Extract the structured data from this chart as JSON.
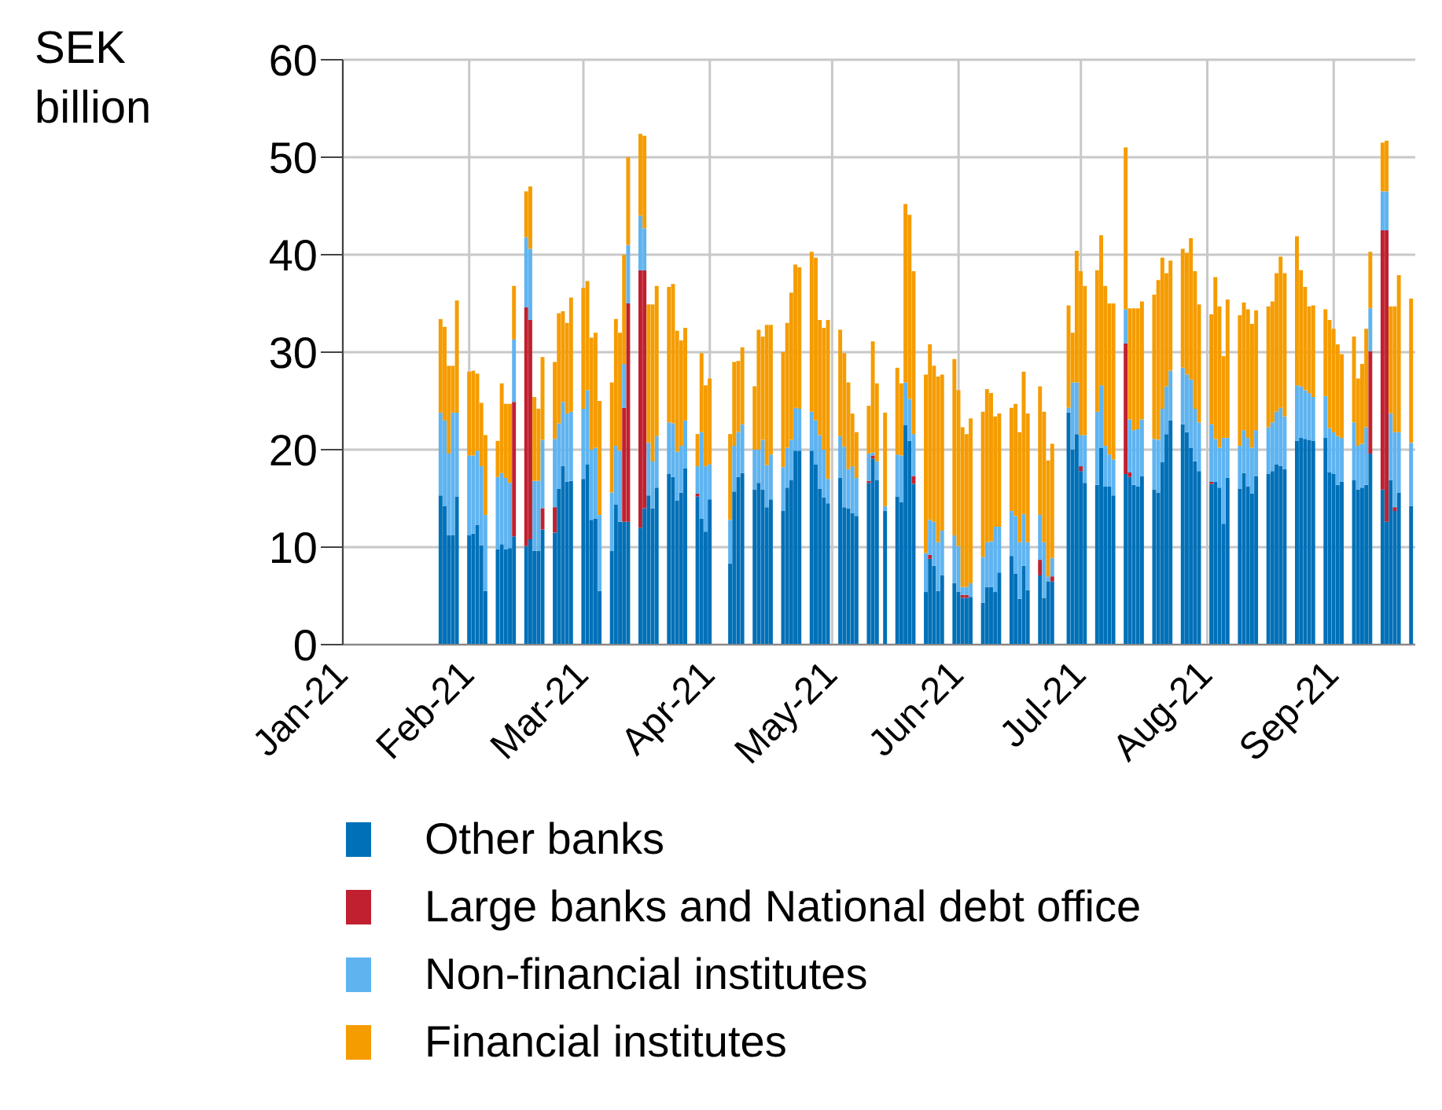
{
  "chart_data": {
    "type": "bar",
    "stacked": true,
    "ylabel": "SEK billion",
    "grid": true,
    "legend": "bottom",
    "xlim": [
      "2021-01-01",
      "2021-09-21"
    ],
    "xticks": [
      {
        "value": "2021-01-01",
        "label": "Jan-21"
      },
      {
        "value": "2021-02-01",
        "label": "Feb-21"
      },
      {
        "value": "2021-03-01",
        "label": "Mar-21"
      },
      {
        "value": "2021-04-01",
        "label": "Apr-21"
      },
      {
        "value": "2021-05-01",
        "label": "May-21"
      },
      {
        "value": "2021-06-01",
        "label": "Jun-21"
      },
      {
        "value": "2021-07-01",
        "label": "Jul-21"
      },
      {
        "value": "2021-08-01",
        "label": "Aug-21"
      },
      {
        "value": "2021-09-01",
        "label": "Sep-21"
      }
    ],
    "ylim": [
      0,
      60
    ],
    "yticks": [
      0,
      10,
      20,
      30,
      40,
      50,
      60
    ],
    "x": [
      "2021-01-25",
      "2021-01-26",
      "2021-01-27",
      "2021-01-28",
      "2021-01-29",
      "2021-02-01",
      "2021-02-02",
      "2021-02-03",
      "2021-02-04",
      "2021-02-05",
      "2021-02-08",
      "2021-02-09",
      "2021-02-10",
      "2021-02-11",
      "2021-02-12",
      "2021-02-15",
      "2021-02-16",
      "2021-02-17",
      "2021-02-18",
      "2021-02-19",
      "2021-02-22",
      "2021-02-23",
      "2021-02-24",
      "2021-02-25",
      "2021-02-26",
      "2021-03-01",
      "2021-03-02",
      "2021-03-03",
      "2021-03-04",
      "2021-03-05",
      "2021-03-08",
      "2021-03-09",
      "2021-03-10",
      "2021-03-11",
      "2021-03-12",
      "2021-03-15",
      "2021-03-16",
      "2021-03-17",
      "2021-03-18",
      "2021-03-19",
      "2021-03-22",
      "2021-03-23",
      "2021-03-24",
      "2021-03-25",
      "2021-03-26",
      "2021-03-29",
      "2021-03-30",
      "2021-03-31",
      "2021-04-01",
      "2021-04-06",
      "2021-04-07",
      "2021-04-08",
      "2021-04-09",
      "2021-04-12",
      "2021-04-13",
      "2021-04-14",
      "2021-04-15",
      "2021-04-16",
      "2021-04-19",
      "2021-04-20",
      "2021-04-21",
      "2021-04-22",
      "2021-04-23",
      "2021-04-26",
      "2021-04-27",
      "2021-04-28",
      "2021-04-29",
      "2021-04-30",
      "2021-05-03",
      "2021-05-04",
      "2021-05-05",
      "2021-05-06",
      "2021-05-07",
      "2021-05-10",
      "2021-05-11",
      "2021-05-12",
      "2021-05-14",
      "2021-05-17",
      "2021-05-18",
      "2021-05-19",
      "2021-05-20",
      "2021-05-21",
      "2021-05-24",
      "2021-05-25",
      "2021-05-26",
      "2021-05-27",
      "2021-05-28",
      "2021-05-31",
      "2021-06-01",
      "2021-06-02",
      "2021-06-03",
      "2021-06-04",
      "2021-06-07",
      "2021-06-08",
      "2021-06-09",
      "2021-06-10",
      "2021-06-11",
      "2021-06-14",
      "2021-06-15",
      "2021-06-16",
      "2021-06-17",
      "2021-06-18",
      "2021-06-21",
      "2021-06-22",
      "2021-06-23",
      "2021-06-24",
      "2021-06-28",
      "2021-06-29",
      "2021-06-30",
      "2021-07-01",
      "2021-07-02",
      "2021-07-05",
      "2021-07-06",
      "2021-07-07",
      "2021-07-08",
      "2021-07-09",
      "2021-07-12",
      "2021-07-13",
      "2021-07-14",
      "2021-07-15",
      "2021-07-16",
      "2021-07-19",
      "2021-07-20",
      "2021-07-21",
      "2021-07-22",
      "2021-07-23",
      "2021-07-26",
      "2021-07-27",
      "2021-07-28",
      "2021-07-29",
      "2021-07-30",
      "2021-08-02",
      "2021-08-03",
      "2021-08-04",
      "2021-08-05",
      "2021-08-06",
      "2021-08-09",
      "2021-08-10",
      "2021-08-11",
      "2021-08-12",
      "2021-08-13",
      "2021-08-16",
      "2021-08-17",
      "2021-08-18",
      "2021-08-19",
      "2021-08-20",
      "2021-08-23",
      "2021-08-24",
      "2021-08-25",
      "2021-08-26",
      "2021-08-27",
      "2021-08-30",
      "2021-08-31",
      "2021-09-01",
      "2021-09-02",
      "2021-09-03",
      "2021-09-06",
      "2021-09-07",
      "2021-09-08",
      "2021-09-09",
      "2021-09-10",
      "2021-09-13",
      "2021-09-14",
      "2021-09-15",
      "2021-09-16",
      "2021-09-17",
      "2021-09-20"
    ],
    "series": [
      {
        "name": "Other banks",
        "color": "#0070b8",
        "values": [
          15.3,
          14.2,
          11.2,
          11.2,
          15.2,
          11.2,
          11.4,
          12.3,
          10.2,
          5.5,
          9.8,
          10.3,
          9.8,
          9.9,
          11.1,
          10.1,
          10.8,
          9.6,
          9.6,
          11.8,
          11.5,
          16,
          18.3,
          16.7,
          16.8,
          17,
          18.5,
          12.8,
          12.9,
          5.5,
          9.6,
          14.4,
          12.6,
          12.6,
          12.6,
          12,
          14,
          15.3,
          14,
          16.1,
          17.5,
          17.2,
          14.8,
          15.6,
          18.1,
          15.2,
          12.9,
          11.6,
          14.9,
          8.3,
          15.7,
          17.2,
          17.6,
          15.9,
          16.6,
          15.9,
          14.1,
          14.9,
          13.7,
          16.1,
          16.9,
          19.9,
          19.9,
          19.9,
          18.5,
          16,
          15.1,
          14.5,
          17.1,
          14.1,
          14,
          13.5,
          13.2,
          16.6,
          19.1,
          16.9,
          13.7,
          15.2,
          14.6,
          22.5,
          20.9,
          16.5,
          5.4,
          8.8,
          8.1,
          5.5,
          7.1,
          6.3,
          5.4,
          4.8,
          4.8,
          4.9,
          4.3,
          5.9,
          5.9,
          5.4,
          7.4,
          9.1,
          7.3,
          4.7,
          8.1,
          5.6,
          7.1,
          4.8,
          6.5,
          6.5,
          23.8,
          20,
          21.6,
          17.8,
          16.6,
          16.4,
          20.2,
          16.2,
          16.2,
          15.3,
          17.5,
          17.2,
          16.4,
          16.2,
          17.3,
          15.9,
          15.6,
          18.7,
          21.6,
          23,
          22.6,
          21.8,
          20.2,
          18.8,
          17.8,
          16.5,
          16.7,
          16.1,
          12.4,
          17.1,
          16,
          17.6,
          16.2,
          15.5,
          17.3,
          17.5,
          17.8,
          18.5,
          18.3,
          18,
          20.9,
          21.2,
          21.1,
          21,
          20.9,
          21.2,
          17.7,
          17.5,
          16.4,
          16.7,
          16.9,
          15.9,
          16.1,
          16.4,
          19.6,
          15.9,
          12.6,
          16.9,
          13.7,
          15.6,
          14.2
        ]
      },
      {
        "name": "Large banks and National debt office",
        "color": "#c0202f",
        "values": [
          0,
          0,
          0,
          0,
          0,
          0,
          0,
          0,
          0,
          0,
          0,
          0,
          0,
          0,
          13.8,
          24.5,
          22.5,
          0,
          0,
          2.2,
          2.6,
          0,
          0,
          0,
          0,
          0,
          0,
          0,
          0,
          0,
          0,
          0,
          0,
          11.7,
          22.4,
          26.4,
          24.4,
          0,
          0,
          0,
          0,
          0,
          0,
          0,
          0,
          0.3,
          0,
          0,
          0,
          0,
          0,
          0,
          0,
          0,
          0,
          0,
          0,
          0,
          0,
          0,
          0,
          0,
          0,
          0,
          0,
          0,
          0,
          0,
          0,
          0,
          0,
          0,
          0,
          0.2,
          0.3,
          0,
          0,
          0,
          0,
          0,
          0,
          0.8,
          0,
          0.4,
          0,
          0,
          0,
          0,
          0,
          0.3,
          0.3,
          0,
          0,
          0,
          0,
          0,
          0,
          0,
          0,
          0,
          0,
          0,
          1.6,
          0,
          0,
          0.5,
          0,
          0,
          0,
          0.5,
          0,
          0,
          0,
          0,
          0,
          0,
          13.4,
          0.5,
          0,
          0,
          0,
          0,
          0,
          0,
          0,
          0,
          0,
          0,
          0,
          0,
          0,
          0.2,
          0,
          0,
          0,
          0,
          0,
          0,
          0,
          0,
          0,
          0,
          0,
          0,
          0,
          0,
          0,
          0,
          0,
          0,
          0,
          0,
          0,
          0,
          0,
          0,
          0,
          0,
          0,
          0,
          10.5,
          26.6,
          29.9,
          0,
          0.4,
          0,
          0
        ]
      },
      {
        "name": "Non-financial institutes",
        "color": "#5fb4f0",
        "values": [
          8.5,
          8.8,
          8.4,
          12.6,
          8.6,
          8.2,
          8,
          7.6,
          8.1,
          7.8,
          7.4,
          7.3,
          7.3,
          6.7,
          6.4,
          7.2,
          7.3,
          7.2,
          7.2,
          7,
          7,
          6.7,
          6.6,
          7,
          7.1,
          7.2,
          7.6,
          7.2,
          7.3,
          7.8,
          6,
          6,
          7.3,
          4.5,
          6,
          5.6,
          4.3,
          5.4,
          4.8,
          5.3,
          5.3,
          5.5,
          5,
          4.8,
          4.9,
          2.8,
          8.9,
          6.7,
          3.6,
          4.5,
          4.7,
          4.6,
          5,
          4.1,
          3.4,
          5.1,
          4.3,
          4.6,
          4.5,
          4.1,
          4.1,
          4.4,
          4.3,
          4,
          4.5,
          5.5,
          4.9,
          2.5,
          4.3,
          6.2,
          4,
          4.8,
          3.9,
          2.8,
          0.3,
          1.9,
          0.5,
          4.3,
          4.8,
          4.4,
          4.3,
          4.3,
          4,
          3.6,
          4.5,
          5,
          4.6,
          4.9,
          4.7,
          0.8,
          0.8,
          1.4,
          4.7,
          4.6,
          4.7,
          6.7,
          4.7,
          4.6,
          5.9,
          5.8,
          5.3,
          4.9,
          4.6,
          5.7,
          0.5,
          1.9,
          0.5,
          6.9,
          5.3,
          3.2,
          4.9,
          7.5,
          6.4,
          4.2,
          3.3,
          3.7,
          3.5,
          5.4,
          5.6,
          5.9,
          5.8,
          5.2,
          5.4,
          5.5,
          4.9,
          5.1,
          5.8,
          5.9,
          7,
          5.4,
          5,
          5.9,
          4.4,
          4.1,
          8.8,
          4.1,
          4.4,
          4.4,
          5,
          4.7,
          4.7,
          4.8,
          5,
          5.4,
          6,
          5.4,
          5.7,
          5.3,
          5,
          4.8,
          4.5,
          4.3,
          4.5,
          4.3,
          5,
          4.5,
          5.9,
          4.5,
          4.5,
          5.9,
          4.4,
          4,
          4,
          6.8,
          7.7,
          6.2,
          6.5
        ]
      },
      {
        "name": "Financial institutes",
        "color": "#f59c00",
        "values": [
          9.6,
          9.6,
          9,
          4.8,
          11.5,
          8.6,
          8.7,
          7.9,
          6.5,
          8.2,
          3.7,
          9.2,
          7.6,
          8.1,
          5.5,
          4.7,
          6.4,
          8.6,
          7.4,
          8.5,
          7.9,
          11.3,
          9.3,
          9.3,
          11.7,
          12.4,
          11.2,
          11.5,
          11.8,
          11.7,
          11.3,
          13,
          12.1,
          11.2,
          9,
          8.4,
          9.5,
          14.2,
          16.1,
          15.4,
          13.9,
          14.3,
          12.4,
          10.8,
          9.5,
          3.3,
          8.1,
          8.3,
          8.8,
          8.8,
          8.6,
          7.3,
          7.9,
          6.5,
          12.3,
          10.6,
          14.4,
          13.3,
          11.8,
          12.8,
          15.1,
          14.7,
          14.5,
          16.4,
          16.7,
          11.8,
          12.5,
          16.3,
          10.9,
          9.6,
          8.9,
          5.4,
          4.7,
          4.9,
          11.4,
          8,
          9.6,
          8.9,
          7.4,
          18.3,
          18.9,
          16.7,
          18.3,
          18,
          16,
          17,
          16,
          18.1,
          16,
          16.4,
          15.7,
          16.9,
          14.9,
          15.7,
          15.2,
          11.3,
          11.6,
          10.6,
          11.5,
          11.3,
          14.6,
          13.2,
          13.2,
          13.4,
          11.9,
          11.7,
          10.5,
          5.1,
          13.5,
          16.8,
          15.3,
          14.5,
          15.4,
          16.4,
          15.5,
          16,
          16.6,
          11.4,
          12.5,
          12.4,
          12.1,
          14.8,
          16.4,
          15.5,
          11.6,
          11.3,
          12.2,
          12.5,
          14.5,
          14.1,
          12.1,
          11.3,
          16.6,
          14.5,
          8.4,
          14.2,
          13.4,
          13.1,
          13.2,
          12.7,
          12.3,
          12.4,
          12.4,
          14.2,
          15.5,
          14.7,
          15.3,
          11.9,
          10.6,
          8.9,
          9.4,
          8.9,
          11.1,
          10.6,
          9.4,
          8.6,
          8.8,
          6.9,
          8.2,
          10.1,
          5.8,
          5,
          5.2,
          11,
          12.9,
          16.1,
          14.8
        ]
      }
    ]
  }
}
